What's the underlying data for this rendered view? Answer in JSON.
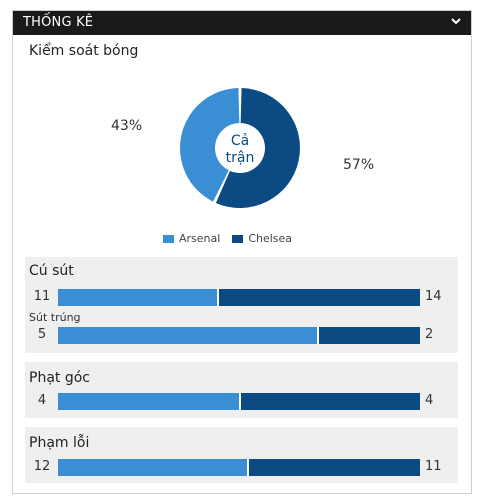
{
  "header": {
    "title": "THỐNG KÊ",
    "toggle_icon": "chevron-down-icon"
  },
  "possession": {
    "title": "Kiểm soát bóng",
    "center_label_line1": "Cả",
    "center_label_line2": "trận",
    "home_pct": "43%",
    "away_pct": "57%",
    "home_value": 43,
    "away_value": 57
  },
  "legend": {
    "home": "Arsenal",
    "away": "Chelsea"
  },
  "colors": {
    "home": "#3a8fd4",
    "away": "#0b4a82",
    "header_bg": "#1a1a1a"
  },
  "stats": {
    "shots": {
      "title": "Cú sút",
      "home": "11",
      "away": "14",
      "home_value": 11,
      "away_value": 14
    },
    "shots_on_target": {
      "title": "Sút trúng",
      "home": "5",
      "away": "2",
      "home_value": 5,
      "away_value": 2
    },
    "corners": {
      "title": "Phạt góc",
      "home": "4",
      "away": "4",
      "home_value": 4,
      "away_value": 4
    },
    "fouls": {
      "title": "Phạm lỗi",
      "home": "12",
      "away": "11",
      "home_value": 12,
      "away_value": 11
    }
  }
}
